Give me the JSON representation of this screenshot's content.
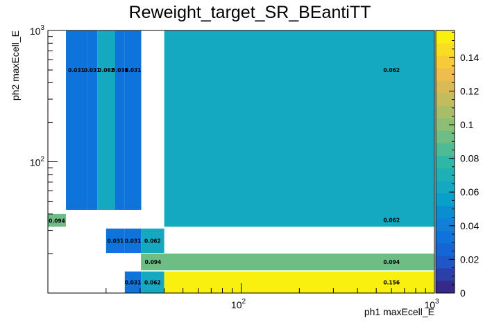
{
  "chart_data": {
    "type": "heatmap",
    "title": "Reweight_target_SR_BEantiTT",
    "xlabel": "ph1 maxEcell_E",
    "ylabel": "ph2 maxEcell_E",
    "xscale": "log",
    "yscale": "log",
    "xlim": [
      10,
      1000
    ],
    "ylim": [
      10,
      1000
    ],
    "zlim": [
      0,
      0.156
    ],
    "x_tick_labels": [
      {
        "value": 100,
        "base": "10",
        "exp": "2"
      },
      {
        "value": 1000,
        "base": "10",
        "exp": "3"
      }
    ],
    "y_tick_labels": [
      {
        "value": 100,
        "base": "10",
        "exp": "2"
      },
      {
        "value": 1000,
        "base": "10",
        "exp": "3"
      }
    ],
    "z_ticks": [
      0,
      0.02,
      0.04,
      0.06,
      0.08,
      0.1,
      0.12,
      0.14
    ],
    "z_tick_labels": [
      "0",
      "0.02",
      "0.04",
      "0.06",
      "0.08",
      "0.1",
      "0.12",
      "0.14"
    ],
    "palette": [
      "#352a87",
      "#2c3fa8",
      "#1f57c7",
      "#1466d6",
      "#0f73dc",
      "#1280d9",
      "#0a8ed0",
      "#06a0ca",
      "#14a9c0",
      "#1fb0b5",
      "#2eb6a7",
      "#4dbb94",
      "#6dbd85",
      "#8ebe75",
      "#a9bd68",
      "#c3bc5c",
      "#d9ba55",
      "#eebd4b",
      "#f8ca39",
      "#f9dd25",
      "#f9f00f"
    ],
    "cells": [
      {
        "x": [
          12.4,
          15.9
        ],
        "y": [
          43,
          1000
        ],
        "value": 0.031,
        "label": "0.031"
      },
      {
        "x": [
          15.9,
          18.0
        ],
        "y": [
          43,
          1000
        ],
        "value": 0.031,
        "label": "0.031"
      },
      {
        "x": [
          18.0,
          22.3
        ],
        "y": [
          43,
          1000
        ],
        "value": 0.062,
        "label": "0.062"
      },
      {
        "x": [
          22.3,
          25.0
        ],
        "y": [
          43,
          1000
        ],
        "value": 0.031,
        "label": "0.031"
      },
      {
        "x": [
          25.0,
          30.4
        ],
        "y": [
          43,
          1000
        ],
        "value": 0.031,
        "label": "0.031"
      },
      {
        "x": [
          40,
          1000
        ],
        "y": [
          32,
          1000
        ],
        "value": 0.062,
        "label": "0.062"
      },
      {
        "x": [
          10,
          12.4
        ],
        "y": [
          32,
          40
        ],
        "value": 0.094,
        "label": "0.094"
      },
      {
        "x": [
          20.0,
          25.0
        ],
        "y": [
          20.2,
          31
        ],
        "value": 0.031,
        "label": "0.031"
      },
      {
        "x": [
          25.0,
          30.3
        ],
        "y": [
          20.2,
          31
        ],
        "value": 0.031,
        "label": "0.031"
      },
      {
        "x": [
          40,
          1000
        ],
        "y": [
          32,
          32
        ],
        "value": 0.062,
        "label": "0.062"
      },
      {
        "x": [
          40,
          1000
        ],
        "y": [
          32,
          32
        ],
        "value": 0.062,
        "label": ""
      },
      {
        "x": [
          40,
          1000
        ],
        "y": [
          32,
          32
        ],
        "value": 0.062,
        "label": ""
      }
    ],
    "cells_main": [
      {
        "x": [
          40,
          1000
        ],
        "y": [
          32,
          1000
        ],
        "value": 0.062,
        "labels": [
          "0.062",
          "0.062"
        ]
      }
    ]
  }
}
